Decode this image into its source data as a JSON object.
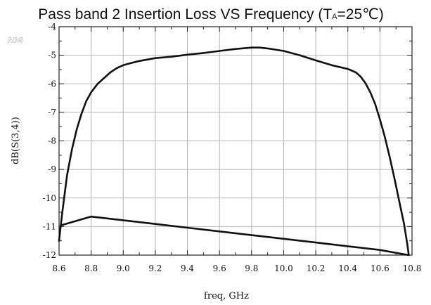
{
  "badge": "ADS",
  "chart_data": {
    "type": "line",
    "title_main": "Pass band 2 Insertion Loss VS Frequency (T",
    "title_sub": "A",
    "title_tail": "=25℃)",
    "xlabel": "freq, GHz",
    "ylabel": "dB(S(3,4))",
    "xlim": [
      8.6,
      10.8
    ],
    "ylim": [
      -12,
      -4
    ],
    "grid": true,
    "xticks": [
      8.6,
      8.8,
      9.0,
      9.2,
      9.4,
      9.6,
      9.8,
      10.0,
      10.2,
      10.4,
      10.6,
      10.8
    ],
    "xtick_labels": [
      "8.6",
      "8.8",
      "9.0",
      "9.2",
      "9.4",
      "9.6",
      "9.8",
      "10.0",
      "10.2",
      "10.4",
      "10.6",
      "10.8"
    ],
    "yticks": [
      -4,
      -5,
      -6,
      -7,
      -8,
      -9,
      -10,
      -11,
      -12
    ],
    "ytick_labels": [
      "-4",
      "-5",
      "-6",
      "-7",
      "-8",
      "-9",
      "-10",
      "-11",
      "-12"
    ],
    "series": [
      {
        "x": [
          8.6,
          8.61,
          8.62,
          8.65,
          8.68,
          8.71,
          8.74,
          8.77,
          8.8,
          8.84,
          8.88,
          8.92,
          8.96,
          9.0,
          9.05,
          9.1,
          9.2,
          9.3,
          9.4,
          9.5,
          9.6,
          9.7,
          9.8,
          9.85,
          9.9,
          10.0,
          10.1,
          10.2,
          10.3,
          10.4,
          10.45,
          10.48,
          10.51,
          10.54,
          10.57,
          10.6,
          10.63,
          10.66,
          10.69,
          10.72,
          10.75,
          10.77,
          10.78,
          10.78,
          10.6,
          10.4,
          10.2,
          10.0,
          9.8,
          9.6,
          9.4,
          9.2,
          9.0,
          8.8,
          8.61,
          8.6
        ],
        "y": [
          -11.5,
          -11.0,
          -10.5,
          -9.2,
          -8.3,
          -7.6,
          -7.05,
          -6.6,
          -6.3,
          -6.0,
          -5.8,
          -5.6,
          -5.45,
          -5.35,
          -5.27,
          -5.2,
          -5.1,
          -5.05,
          -4.98,
          -4.92,
          -4.85,
          -4.78,
          -4.73,
          -4.73,
          -4.76,
          -4.85,
          -5.0,
          -5.18,
          -5.35,
          -5.48,
          -5.6,
          -5.75,
          -5.98,
          -6.3,
          -6.7,
          -7.25,
          -7.85,
          -8.55,
          -9.3,
          -10.1,
          -10.9,
          -11.6,
          -12.0,
          -12.0,
          -11.82,
          -11.69,
          -11.56,
          -11.43,
          -11.3,
          -11.17,
          -11.04,
          -10.91,
          -10.78,
          -10.65,
          -10.96,
          -11.5
        ]
      }
    ]
  }
}
